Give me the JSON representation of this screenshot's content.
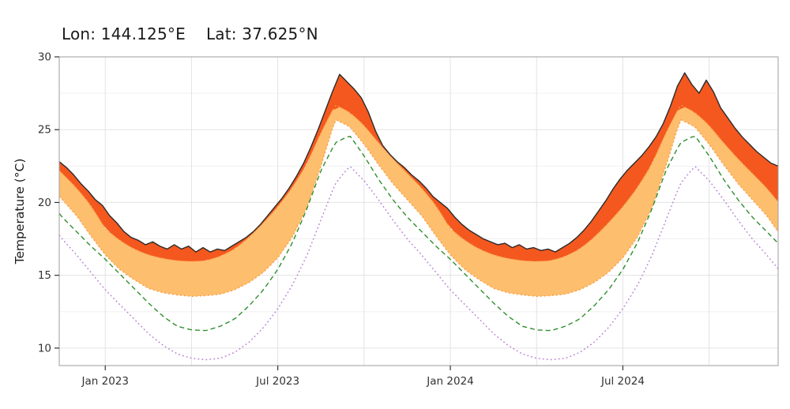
{
  "title": {
    "lon": "Lon: 144.125°E",
    "lat": "Lat: 37.625°N"
  },
  "axes": {
    "ylabel": "Temperature (°C)",
    "y_ticks": [
      10,
      15,
      20,
      25,
      30
    ],
    "y_minor": [
      12.5,
      17.5,
      22.5,
      27.5
    ],
    "y_range": [
      8.8,
      30
    ],
    "t_range": [
      -1.6,
      23.4
    ],
    "x_ticks": [
      {
        "t": 0,
        "label": "Jan 2023"
      },
      {
        "t": 6,
        "label": "Jul 2023"
      },
      {
        "t": 12,
        "label": "Jan 2024"
      },
      {
        "t": 18,
        "label": "Jul 2024"
      }
    ],
    "grid_t": [
      0,
      3,
      6,
      9,
      12,
      15,
      18,
      21
    ]
  },
  "colors": {
    "band": "#FDBE6E",
    "band_edge": "#FB9A3C",
    "heat_fill": "#F4581E",
    "observed": "#2B2B2B",
    "climatology": "#2F8F2F",
    "percentile": "#B57BD5",
    "grid_major": "#E3E3E3",
    "grid_minor": "#F0F0F0",
    "panel_border": "#9E9E9E",
    "tick_text": "#333333",
    "title_text": "#1A1A1A"
  },
  "chart_data": {
    "type": "line",
    "x_unit": "months_since_2023-01-01",
    "description_title": "Lon: 144.125°E   Lat: 37.625°N",
    "ylabel": "Temperature (°C)",
    "ylim": [
      8.8,
      30
    ],
    "observed": {
      "t_start": -1.6,
      "t_step": 0.25,
      "values": [
        22.8,
        22.4,
        21.9,
        21.3,
        20.8,
        20.2,
        19.8,
        19.1,
        18.6,
        18.0,
        17.6,
        17.4,
        17.1,
        17.3,
        17.0,
        16.8,
        17.1,
        16.8,
        17.0,
        16.6,
        16.9,
        16.6,
        16.8,
        16.7,
        17.0,
        17.3,
        17.6,
        18.0,
        18.5,
        19.1,
        19.7,
        20.3,
        21.0,
        21.8,
        22.7,
        23.8,
        25.0,
        26.3,
        27.6,
        28.8,
        28.3,
        27.8,
        27.2,
        26.2,
        24.9,
        23.9,
        23.3,
        22.8,
        22.4,
        21.9,
        21.5,
        21.0,
        20.4,
        20.0,
        19.6,
        19.0,
        18.5,
        18.1,
        17.8,
        17.5,
        17.3,
        17.1,
        17.2,
        16.9,
        17.1,
        16.8,
        16.9,
        16.7,
        16.8,
        16.6,
        16.9,
        17.2,
        17.6,
        18.1,
        18.7,
        19.4,
        20.1,
        20.9,
        21.6,
        22.2,
        22.7,
        23.2,
        23.8,
        24.5,
        25.4,
        26.6,
        28.0,
        28.9,
        28.1,
        27.5,
        28.4,
        27.6,
        26.5,
        25.8,
        25.1,
        24.5,
        24.0,
        23.5,
        23.1,
        22.7,
        22.5
      ]
    },
    "threshold_upper_cycle": {
      "t_step": 0.5,
      "values": [
        18.2,
        17.4,
        16.8,
        16.4,
        16.15,
        16.0,
        15.95,
        16.0,
        16.3,
        16.8,
        17.6,
        18.6,
        19.7,
        21.0,
        22.6,
        24.8,
        26.7,
        26.2,
        25.3,
        24.1,
        23.0,
        22.0,
        21.0,
        19.8,
        18.2
      ]
    },
    "threshold_lower_cycle": {
      "t_step": 0.5,
      "values": [
        16.4,
        15.4,
        14.7,
        14.1,
        13.8,
        13.65,
        13.55,
        13.6,
        13.7,
        14.0,
        14.5,
        15.2,
        16.2,
        17.6,
        19.6,
        22.5,
        25.7,
        25.2,
        24.0,
        22.6,
        21.3,
        20.2,
        19.1,
        17.7,
        16.4
      ]
    },
    "climatology_mean_cycle": {
      "t_step": 0.5,
      "values": [
        16.1,
        15.1,
        14.1,
        13.1,
        12.2,
        11.5,
        11.25,
        11.2,
        11.5,
        12.0,
        12.9,
        14.0,
        15.4,
        17.2,
        19.5,
        22.2,
        24.1,
        24.6,
        23.2,
        21.6,
        20.2,
        19.0,
        18.0,
        17.0,
        16.1
      ]
    },
    "lower_percentile_cycle": {
      "t_step": 0.5,
      "values": [
        14.0,
        13.0,
        12.0,
        11.0,
        10.2,
        9.6,
        9.3,
        9.2,
        9.3,
        9.7,
        10.4,
        11.4,
        12.7,
        14.3,
        16.3,
        18.8,
        21.3,
        22.5,
        21.5,
        20.2,
        18.8,
        17.5,
        16.4,
        15.2,
        14.0
      ]
    }
  }
}
